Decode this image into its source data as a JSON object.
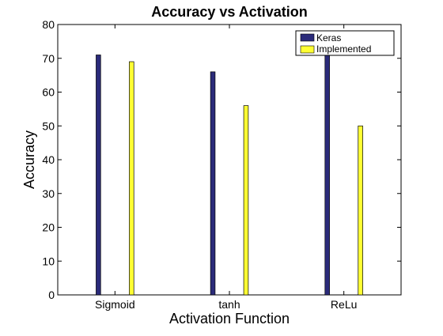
{
  "chart_data": {
    "type": "bar",
    "title": "Accuracy vs Activation",
    "xlabel": "Activation Function",
    "ylabel": "Accuracy",
    "categories": [
      "Sigmoid",
      "tanh",
      "ReLu"
    ],
    "series": [
      {
        "name": "Keras",
        "values": [
          71,
          66,
          73
        ],
        "color": "#2b2b7a"
      },
      {
        "name": "Implemented",
        "values": [
          69,
          56,
          50
        ],
        "color": "#ffff33"
      }
    ],
    "ylim": [
      0,
      80
    ],
    "yticks": [
      0,
      10,
      20,
      30,
      40,
      50,
      60,
      70,
      80
    ],
    "grid": false,
    "legend_position": "top-right"
  }
}
